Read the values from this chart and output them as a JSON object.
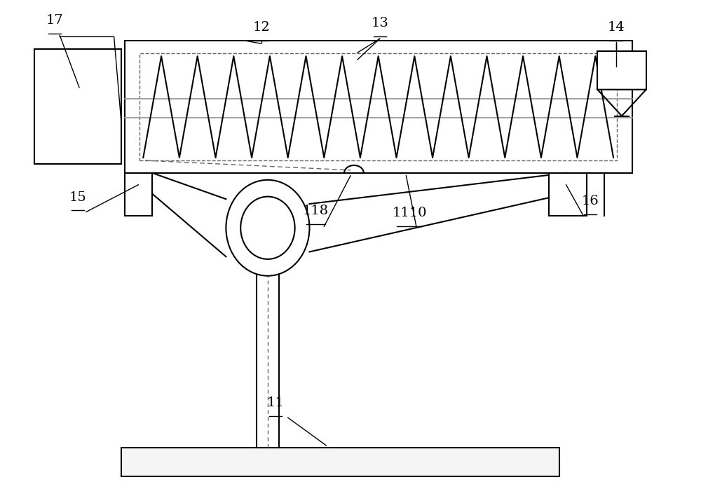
{
  "bg_color": "#ffffff",
  "line_color": "#000000",
  "dashed_color": "#666666",
  "gray_color": "#999999",
  "figsize": [
    10.0,
    7.18
  ],
  "dpi": 100
}
